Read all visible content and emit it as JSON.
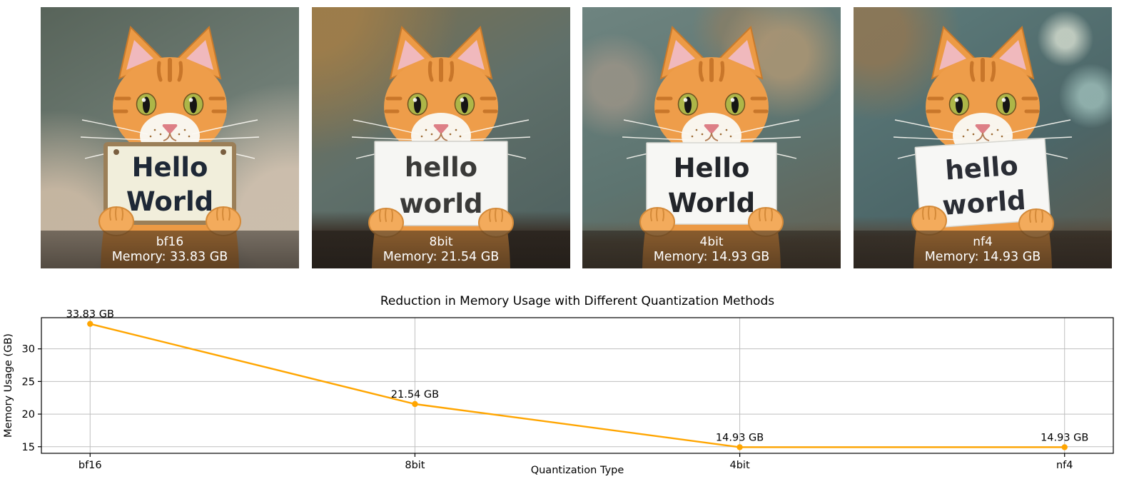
{
  "panels": [
    {
      "label": "bf16",
      "memory": "Memory: 33.83 GB",
      "sign_line1": "Hello",
      "sign_line2": "World"
    },
    {
      "label": "8bit",
      "memory": "Memory: 21.54 GB",
      "sign_line1": "hello",
      "sign_line2": "world"
    },
    {
      "label": "4bit",
      "memory": "Memory: 14.93 GB",
      "sign_line1": "Hello",
      "sign_line2": "World"
    },
    {
      "label": "nf4",
      "memory": "Memory: 14.93 GB",
      "sign_line1": "hello",
      "sign_line2": "world"
    }
  ],
  "chart_data": {
    "type": "line",
    "categories": [
      "bf16",
      "8bit",
      "4bit",
      "nf4"
    ],
    "values": [
      33.83,
      21.54,
      14.93,
      14.93
    ],
    "annotations": [
      "33.83 GB",
      "21.54 GB",
      "14.93 GB",
      "14.93 GB"
    ],
    "title": "Reduction in Memory Usage with Different Quantization Methods",
    "xlabel": "Quantization Type",
    "ylabel": "Memory Usage (GB)",
    "yticks": [
      15,
      20,
      25,
      30
    ],
    "ylim": [
      13.99,
      34.78
    ],
    "grid": true,
    "legend": "none",
    "line_color": "#FFA500",
    "marker": "o",
    "grid_color": "#bfbfbf",
    "spine_color": "#000000",
    "text_color": "#000000"
  }
}
